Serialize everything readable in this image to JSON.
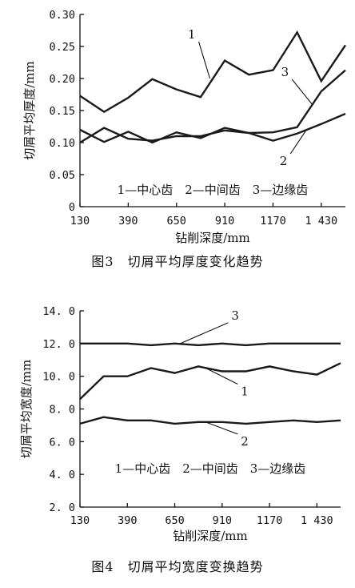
{
  "chart_data": [
    {
      "type": "line",
      "title": "",
      "caption": "图3　切屑平均厚度变化趋势",
      "xlabel": "钻削深度/mm",
      "ylabel": "切屑平均厚度/mm",
      "xlim": [
        130,
        1560
      ],
      "ylim": [
        0,
        0.3
      ],
      "x_ticks": [
        130,
        390,
        650,
        910,
        1170,
        1430
      ],
      "x_tick_labels": [
        "130",
        "390",
        "650",
        "910",
        "1170",
        "1 430"
      ],
      "y_ticks": [
        0,
        0.05,
        0.1,
        0.15,
        0.2,
        0.25,
        0.3
      ],
      "y_tick_labels": [
        "0",
        "0.05",
        "0.10",
        "0.15",
        "0.20",
        "0.25",
        "0.30"
      ],
      "legend": "1—中心齿　2—中间齿　3—边缘齿",
      "x": [
        130,
        260,
        390,
        520,
        650,
        780,
        910,
        1040,
        1170,
        1300,
        1430,
        1560
      ],
      "series": [
        {
          "name": "1",
          "values": [
            0.173,
            0.148,
            0.17,
            0.199,
            0.183,
            0.171,
            0.228,
            0.206,
            0.213,
            0.272,
            0.196,
            0.252
          ]
        },
        {
          "name": "2",
          "values": [
            0.12,
            0.101,
            0.117,
            0.1,
            0.116,
            0.107,
            0.123,
            0.115,
            0.103,
            0.114,
            0.129,
            0.145
          ]
        },
        {
          "name": "3",
          "values": [
            0.1,
            0.123,
            0.106,
            0.103,
            0.11,
            0.11,
            0.119,
            0.115,
            0.116,
            0.124,
            0.18,
            0.213
          ]
        }
      ],
      "series_tags": [
        {
          "name": "1",
          "anchor_x": 830,
          "anchor_y": 0.2
        },
        {
          "name": "3",
          "anchor_x": 1380,
          "anchor_y": 0.16
        },
        {
          "name": "2",
          "anchor_x": 1350,
          "anchor_y": 0.12
        }
      ],
      "grid": false
    },
    {
      "type": "line",
      "title": "",
      "caption": "图4　切屑平均宽度变换趋势",
      "xlabel": "钻削深度/mm",
      "ylabel": "切屑平均宽度/mm",
      "xlim": [
        130,
        1560
      ],
      "ylim": [
        2.0,
        14.0
      ],
      "x_ticks": [
        130,
        390,
        650,
        910,
        1170,
        1430
      ],
      "x_tick_labels": [
        "130",
        "390",
        "650",
        "910",
        "1170",
        "1 430"
      ],
      "y_ticks": [
        2.0,
        4.0,
        6.0,
        8.0,
        10.0,
        12.0,
        14.0
      ],
      "y_tick_labels": [
        "2. 0",
        "4. 0",
        "6. 0",
        "8. 0",
        "10. 0",
        "12. 0",
        "14. 0"
      ],
      "legend": "1—中心齿　2—中间齿　3—边缘齿",
      "x": [
        130,
        260,
        390,
        520,
        650,
        780,
        910,
        1040,
        1170,
        1300,
        1430,
        1560
      ],
      "series": [
        {
          "name": "1",
          "values": [
            8.6,
            10.0,
            10.0,
            10.5,
            10.2,
            10.6,
            10.3,
            10.3,
            10.6,
            10.3,
            10.1,
            10.8
          ]
        },
        {
          "name": "2",
          "values": [
            7.1,
            7.5,
            7.3,
            7.3,
            7.1,
            7.2,
            7.2,
            7.1,
            7.2,
            7.3,
            7.2,
            7.3
          ]
        },
        {
          "name": "3",
          "values": [
            12.0,
            12.0,
            12.0,
            11.9,
            12.0,
            11.9,
            12.0,
            11.9,
            12.0,
            12.0,
            12.0,
            12.0
          ]
        }
      ],
      "series_tags": [
        {
          "name": "3",
          "anchor_x": 680,
          "anchor_y": 12.0
        },
        {
          "name": "1",
          "anchor_x": 820,
          "anchor_y": 10.5
        },
        {
          "name": "2",
          "anchor_x": 820,
          "anchor_y": 7.2
        }
      ],
      "grid": false
    }
  ]
}
